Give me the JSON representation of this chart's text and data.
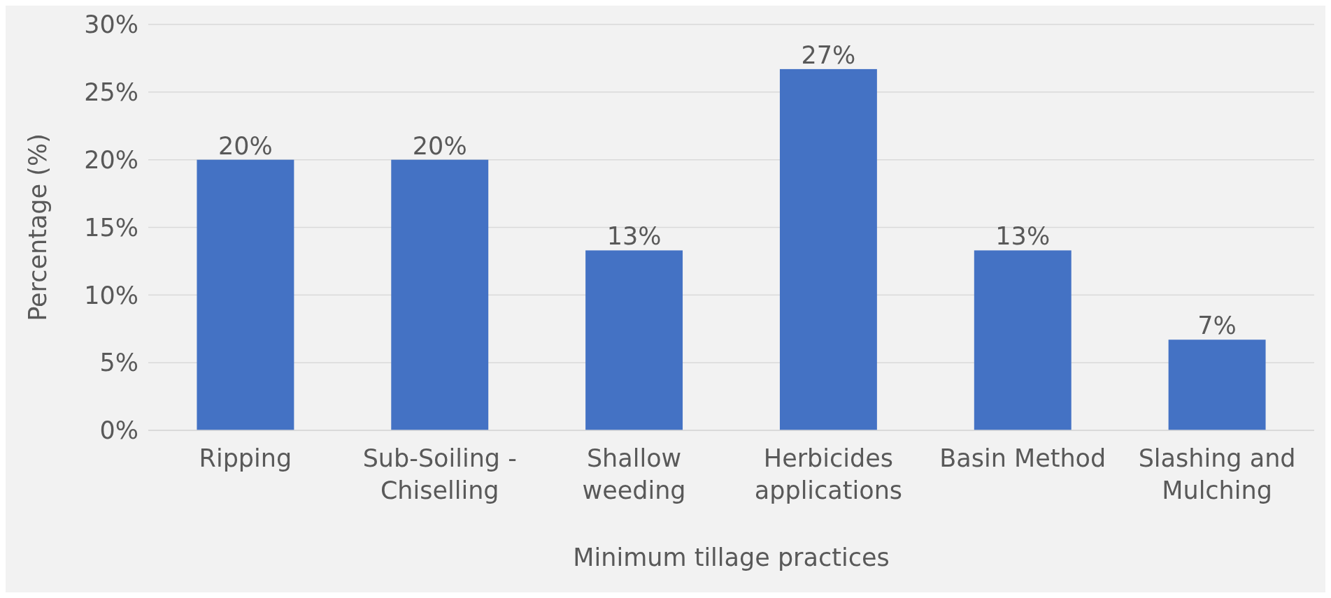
{
  "chart_data": {
    "type": "bar",
    "xlabel": "Minimum tillage practices",
    "ylabel": "Percentage (%)",
    "categories": [
      "Ripping",
      "Sub-Soiling - Chiselling",
      "Shallow weeding",
      "Herbicides applications",
      "Basin Method",
      "Slashing and Mulching"
    ],
    "values": [
      20,
      20,
      13.3,
      26.7,
      13.3,
      6.7
    ],
    "value_labels": [
      "20%",
      "20%",
      "13%",
      "27%",
      "13%",
      "7%"
    ],
    "color": "#4472c4",
    "ylim": [
      0,
      30
    ],
    "yticks": [
      {
        "value": 0,
        "label": "0%"
      },
      {
        "value": 5,
        "label": "5%"
      },
      {
        "value": 10,
        "label": "10%"
      },
      {
        "value": 15,
        "label": "15%"
      },
      {
        "value": 20,
        "label": "20%"
      },
      {
        "value": 25,
        "label": "25%"
      },
      {
        "value": 30,
        "label": "30%"
      }
    ],
    "grid": "y"
  }
}
